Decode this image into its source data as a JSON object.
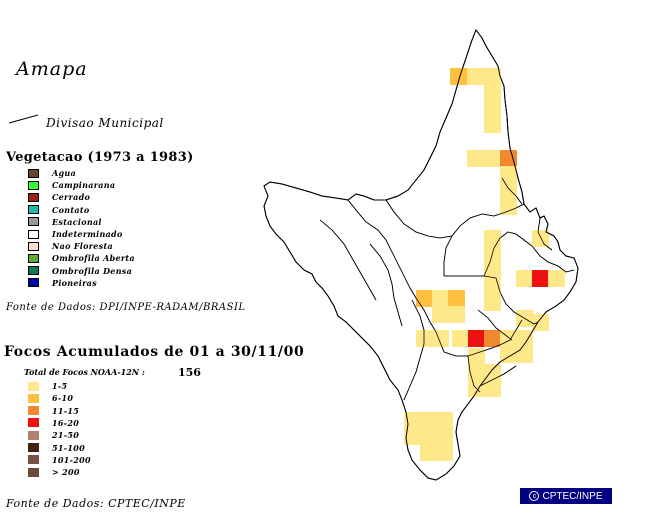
{
  "map": {
    "title": "Amapa",
    "divisao_label": "Divisao Municipal"
  },
  "vegetacao": {
    "title": "Vegetacao (1973 a 1983)",
    "items": [
      {
        "label": "Agua",
        "color": "#6b4433"
      },
      {
        "label": "Campinarana",
        "color": "#33ff33"
      },
      {
        "label": "Cerrado",
        "color": "#992211"
      },
      {
        "label": "Contato",
        "color": "#22bbaa"
      },
      {
        "label": "Estacional",
        "color": "#999999"
      },
      {
        "label": "Indeterminado",
        "color": "#ffffff"
      },
      {
        "label": "Nao Floresta",
        "color": "#ffddcc"
      },
      {
        "label": "Ombrofila Aberta",
        "color": "#66aa33"
      },
      {
        "label": "Ombrofila Densa",
        "color": "#117755"
      },
      {
        "label": "Pioneiras",
        "color": "#0000aa"
      }
    ],
    "source": "Fonte de Dados: DPI/INPE-RADAM/BRASIL"
  },
  "focos": {
    "title": "Focos Acumulados de 01 a 30/11/00",
    "total_label": "Total de Focos NOAA-12N :",
    "total_value": "156",
    "classes": [
      {
        "label": "1-5",
        "color": "#ffe88a"
      },
      {
        "label": "6-10",
        "color": "#ffc040"
      },
      {
        "label": "11-15",
        "color": "#f08830"
      },
      {
        "label": "16-20",
        "color": "#ee1111"
      },
      {
        "label": "21-50",
        "color": "#b08070"
      },
      {
        "label": "51-100",
        "color": "#442211"
      },
      {
        "label": "101-200",
        "color": "#7a5040"
      },
      {
        "label": "> 200",
        "color": "#6a4a3a"
      }
    ],
    "source": "Fonte de Dados: CPTEC/INPE"
  },
  "credit": "CPTEC/INPE"
}
